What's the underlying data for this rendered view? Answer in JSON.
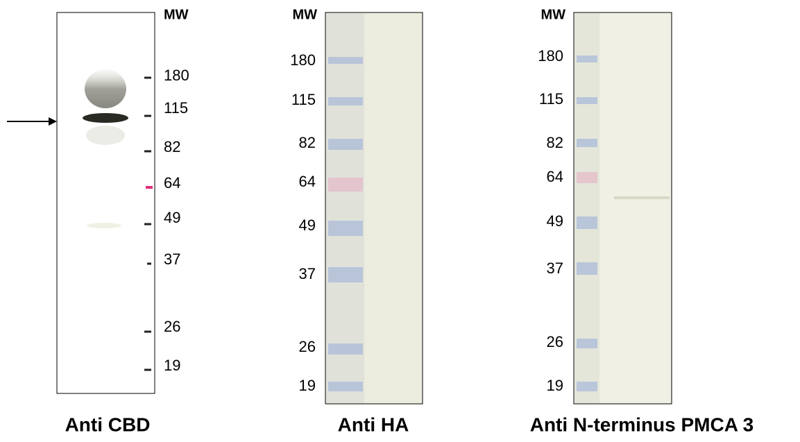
{
  "panels": [
    {
      "title": "Anti CBD",
      "mw_label": "MW",
      "markers": [
        "180",
        "115",
        "82",
        "64",
        "49",
        "37",
        "26",
        "19"
      ]
    },
    {
      "title": "Anti HA",
      "mw_label": "MW",
      "markers": [
        "180",
        "115",
        "82",
        "64",
        "49",
        "37",
        "26",
        "19"
      ]
    },
    {
      "title": "Anti N-terminus PMCA 3",
      "mw_label": "MW",
      "markers": [
        "180",
        "115",
        "82",
        "64",
        "49",
        "37",
        "26",
        "19"
      ]
    }
  ]
}
